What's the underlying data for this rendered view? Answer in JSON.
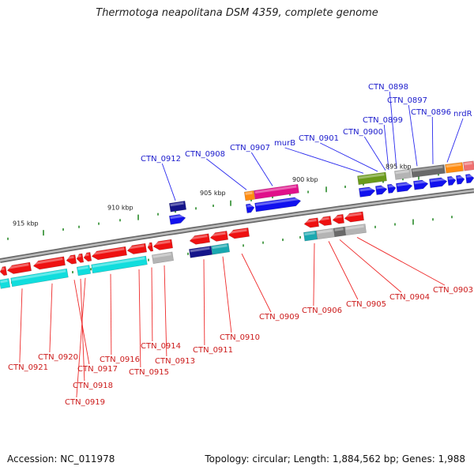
{
  "title": "Thermotoga neapolitana DSM 4359, complete genome",
  "footer": {
    "accession": "Accession: NC_011978",
    "topology": "Topology: circular; Length: 1,884,562 bp; Genes: 1,988"
  },
  "colors": {
    "backbone": "#8a8a8a",
    "tick": "#2a8a2a",
    "top_label": "#1a1acc",
    "bottom_label": "#cc1a1a",
    "red": "#ee1111",
    "blue": "#1111ee",
    "cyan": "#11dddd",
    "navy": "#14148a",
    "teal": "#1aa8b0",
    "gray": "#b4b4b4",
    "dark_gray": "#6a6a6a",
    "magenta": "#e0108a",
    "orange": "#ff8c10",
    "olive": "#6a9a1a",
    "salmon": "#f07070"
  },
  "scale": {
    "kbp_labels": [
      "915 kbp",
      "910 kbp",
      "905 kbp",
      "900 kbp",
      "895 kbp"
    ]
  },
  "top_labels": [
    "CTN_0912",
    "CTN_0908",
    "CTN_0907",
    "murB",
    "CTN_0901",
    "CTN_0900",
    "CTN_0899",
    "CTN_0898",
    "CTN_0897",
    "CTN_0896",
    "nrdR"
  ],
  "bottom_labels": [
    "CTN_0921",
    "CTN_0920",
    "CTN_0917",
    "CTN_0918",
    "CTN_0919",
    "CTN_0916",
    "CTN_0915",
    "CTN_0914",
    "CTN_0913",
    "CTN_0911",
    "CTN_0910",
    "CTN_0909",
    "CTN_0906",
    "CTN_0905",
    "CTN_0904",
    "CTN_0903"
  ]
}
